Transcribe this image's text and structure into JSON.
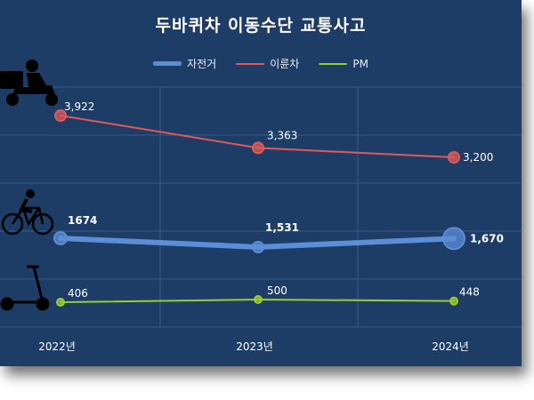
{
  "chart_data": {
    "type": "line",
    "title": "두바퀴차 이동수단 교통사고",
    "categories": [
      "2022년",
      "2023년",
      "2024년"
    ],
    "series": [
      {
        "name": "자전거",
        "values": [
          1674,
          1531,
          1670
        ],
        "labels": [
          "1674",
          "1,531",
          "1,670"
        ],
        "color": "#5b8ed6"
      },
      {
        "name": "이륜차",
        "values": [
          3922,
          3363,
          3200
        ],
        "labels": [
          "3,922",
          "3,363",
          "3,200"
        ],
        "color": "#e05a5a"
      },
      {
        "name": "PM",
        "values": [
          406,
          500,
          448
        ],
        "labels": [
          "406",
          "500",
          "448"
        ],
        "color": "#9acd32"
      }
    ],
    "legend_position": "top",
    "grid": true
  },
  "icons": {
    "motorcycle": "delivery-motorcycle-icon",
    "bicycle": "bicycle-rider-icon",
    "scooter": "kick-scooter-icon"
  },
  "colors": {
    "background": "#1d3c66",
    "grid": "#3a5a86"
  }
}
